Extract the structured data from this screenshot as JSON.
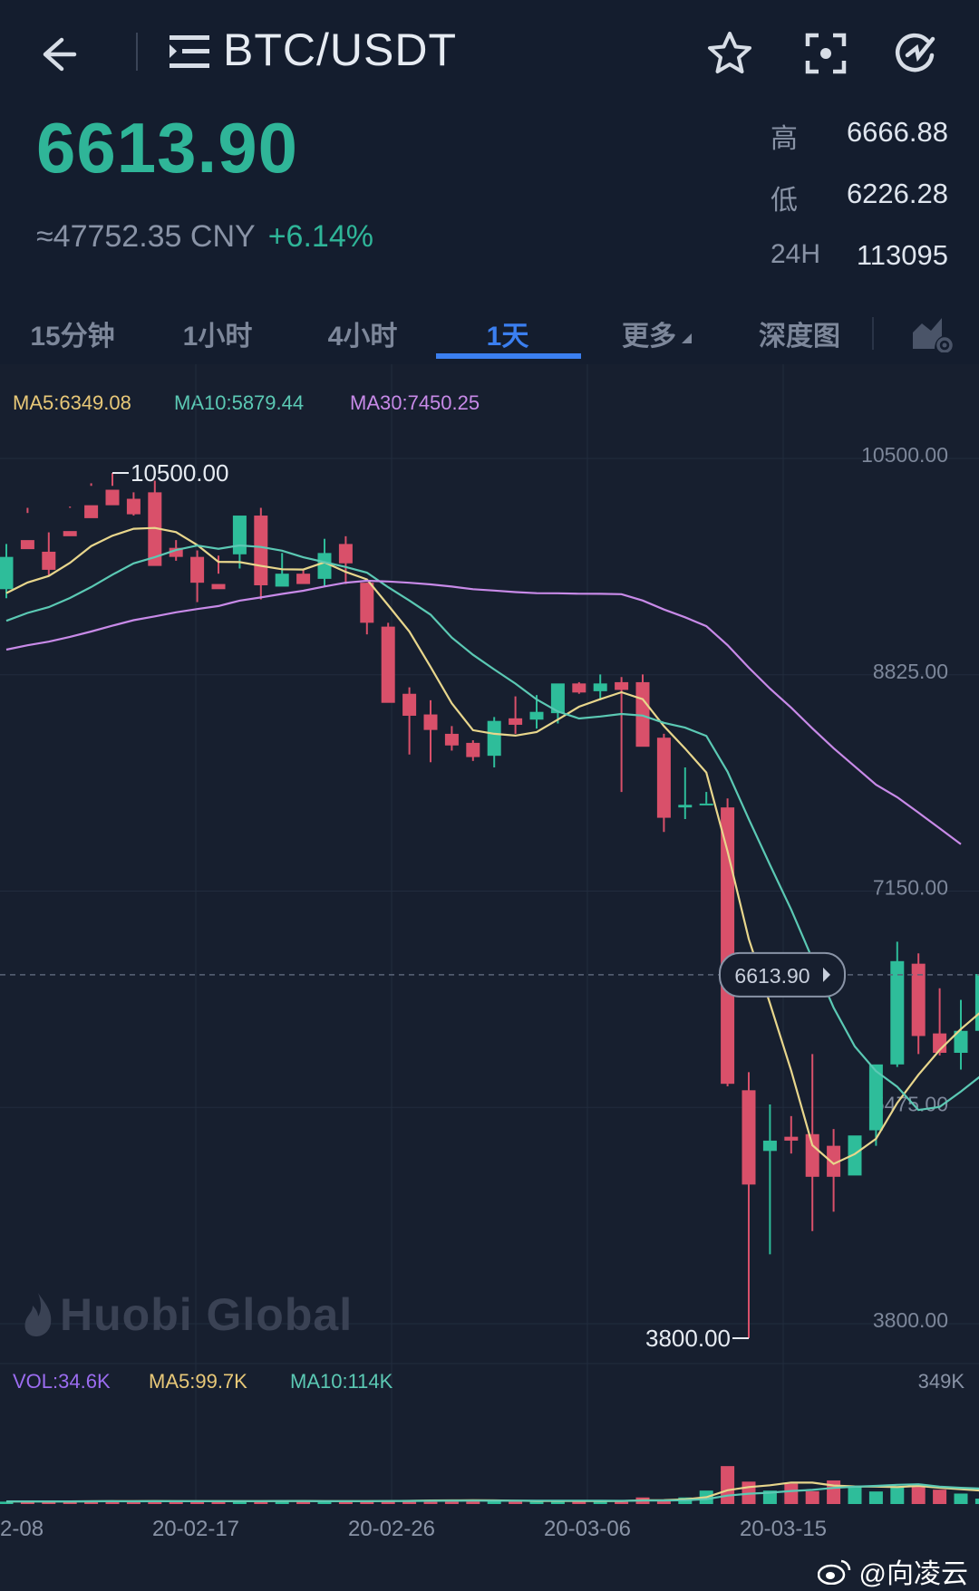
{
  "header": {
    "back_icon": "arrow-left-icon",
    "menu_icon": "list-menu-icon",
    "pair": "BTC/USDT",
    "actions": [
      "star-icon",
      "screenshot-icon",
      "refresh-icon"
    ]
  },
  "ticker": {
    "price": "6613.90",
    "cny": "≈47752.35 CNY",
    "change": "+6.14%",
    "high_label": "高",
    "high": "6666.88",
    "low_label": "低",
    "low": "6226.28",
    "vol_label": "24H",
    "vol": "113095"
  },
  "tabs": [
    {
      "label": "15分钟",
      "active": false
    },
    {
      "label": "1小时",
      "active": false
    },
    {
      "label": "4小时",
      "active": false
    },
    {
      "label": "1天",
      "active": true
    },
    {
      "label": "更多",
      "active": false
    },
    {
      "label": "深度图",
      "active": false
    }
  ],
  "chart_settings_icon": "chart-settings-icon",
  "ma_legend": {
    "ma5": "MA5:6349.08",
    "ma10": "MA10:5879.44",
    "ma30": "MA30:7450.25"
  },
  "vol_legend": {
    "vol": "VOL:34.6K",
    "ma5": "MA5:99.7K",
    "ma10": "MA10:114K",
    "max": "349K"
  },
  "brand_watermark": "Huobi Global",
  "social_watermark": "@向凌云",
  "colors": {
    "up": "#2ebd9a",
    "down": "#d9506a",
    "ma5": "#e8d68c",
    "ma10": "#5bc9b4",
    "ma30": "#c88ae8",
    "accent": "#3b7ff0"
  },
  "chart_data": {
    "type": "candlestick",
    "price_axis": {
      "ticks": [
        "10500.00",
        "8825.00",
        "7150.00",
        "5475.00",
        "3800.00"
      ],
      "range": [
        3800,
        10500
      ]
    },
    "x_ticks": [
      "2-08",
      "20-02-17",
      "20-02-26",
      "20-03-06",
      "20-03-15"
    ],
    "last_price_label": "6613.90",
    "max_label": "10500.00",
    "min_label": "3800.00",
    "candles": [
      [
        9600,
        9950,
        9850,
        9530
      ],
      [
        9980,
        10230,
        9910,
        10190
      ],
      [
        9890,
        10040,
        9750,
        9700
      ],
      [
        10050,
        10230,
        10010,
        10240
      ],
      [
        10250,
        10400,
        10150,
        10420
      ],
      [
        10370,
        10500,
        10250,
        10400
      ],
      [
        10300,
        10350,
        10180,
        10170
      ],
      [
        10350,
        10440,
        9780,
        9800
      ],
      [
        9920,
        9980,
        9850,
        9820
      ],
      [
        9850,
        9900,
        9650,
        9500
      ],
      [
        9640,
        9860,
        9600,
        9720
      ],
      [
        9870,
        10150,
        10170,
        9760
      ],
      [
        10170,
        10230,
        9630,
        9520
      ],
      [
        9620,
        9880,
        9720,
        9650
      ],
      [
        9720,
        9760,
        9640,
        9700
      ],
      [
        9680,
        9990,
        9880,
        9620
      ],
      [
        9950,
        10010,
        9800,
        9640
      ],
      [
        9650,
        9650,
        9340,
        9250
      ],
      [
        9310,
        9340,
        8720,
        8730
      ],
      [
        8790,
        8840,
        8620,
        8320
      ],
      [
        8630,
        8740,
        8510,
        8260
      ],
      [
        8480,
        8540,
        8390,
        8350
      ],
      [
        8410,
        8430,
        8300,
        8270
      ],
      [
        8310,
        8610,
        8580,
        8220
      ],
      [
        8600,
        8770,
        8550,
        8480
      ],
      [
        8590,
        8780,
        8650,
        8520
      ],
      [
        8640,
        8850,
        8870,
        8560
      ],
      [
        8870,
        8880,
        8800,
        8790
      ],
      [
        8810,
        8940,
        8870,
        8740
      ],
      [
        8880,
        8920,
        8820,
        8030
      ],
      [
        8880,
        8940,
        8380,
        8400
      ],
      [
        8450,
        8480,
        7830,
        7720
      ],
      [
        7910,
        8220,
        7930,
        7820
      ],
      [
        7940,
        8030,
        7940,
        7940
      ],
      [
        7910,
        7980,
        5770,
        5750
      ],
      [
        5720,
        5860,
        4990,
        3800
      ],
      [
        5250,
        5610,
        5330,
        4450
      ],
      [
        5360,
        5520,
        5330,
        5230
      ],
      [
        5380,
        6000,
        5050,
        4630
      ],
      [
        5290,
        5420,
        5050,
        4780
      ],
      [
        5060,
        5280,
        5370,
        5190
      ],
      [
        5410,
        5760,
        5920,
        5290
      ],
      [
        5920,
        6870,
        6720,
        5900
      ],
      [
        6700,
        6780,
        6140,
        6000
      ],
      [
        6160,
        6510,
        6010,
        5990
      ],
      [
        6010,
        6420,
        6180,
        5880
      ],
      [
        6180,
        6670,
        6620,
        6160
      ]
    ],
    "volume": [
      8,
      8,
      9,
      10,
      10,
      12,
      8,
      10,
      9,
      9,
      11,
      10,
      9,
      11,
      10,
      8,
      10,
      10,
      12,
      13,
      14,
      12,
      11,
      10,
      9,
      10,
      11,
      10,
      9,
      10,
      22,
      15,
      22,
      45,
      127,
      75,
      45,
      68,
      43,
      79,
      60,
      42,
      60,
      63,
      48,
      35,
      18
    ],
    "volume_range": [
      0,
      349
    ]
  }
}
